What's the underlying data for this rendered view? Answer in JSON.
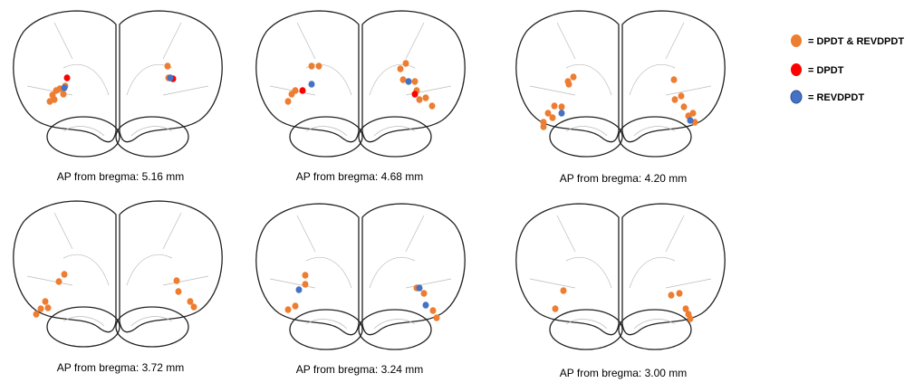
{
  "legend": [
    "= DPDT & REVDPDT",
    "= DPDT",
    "= REVDPDT"
  ],
  "captions": [
    "AP from bregma: 5.16 mm",
    "AP from bregma: 4.68 mm",
    "AP from bregma: 4.20 mm",
    "AP from bregma: 3.72 mm",
    "AP from bregma: 3.24 mm",
    "AP from bregma: 3.00 mm"
  ]
}
